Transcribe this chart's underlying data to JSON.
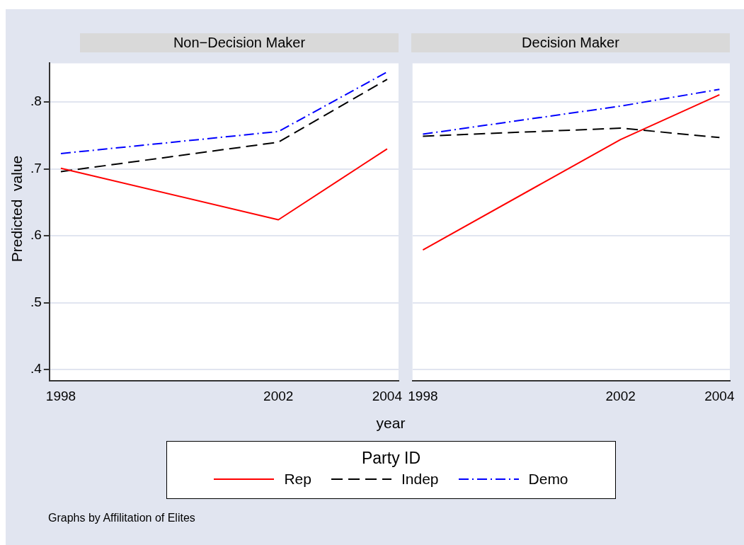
{
  "chart_data": [
    {
      "type": "line",
      "title": "Non−Decision Maker",
      "ylabel": "Predicted  value",
      "xlabel": "year",
      "legend_title": "Party ID",
      "legend": "bottom",
      "annotations": [
        "Graphs by Affilitation of Elites"
      ],
      "x": [
        1998,
        2002,
        2004
      ],
      "xlim": [
        1997.79,
        2004.21
      ],
      "xticks": [
        1998,
        2002,
        2004
      ],
      "ylim": [
        0.383,
        0.858
      ],
      "yticks": [
        {
          "value": 0.4,
          "label": ".4"
        },
        {
          "value": 0.5,
          "label": ".5"
        },
        {
          "value": 0.6,
          "label": ".6"
        },
        {
          "value": 0.7,
          "label": ".7"
        },
        {
          "value": 0.8,
          "label": ".8"
        }
      ],
      "grid": "y",
      "series": [
        {
          "name": "Rep",
          "color": "#ff0000",
          "line_style": "solid",
          "values": [
            0.701,
            0.624,
            0.73
          ]
        },
        {
          "name": "Indep",
          "color": "#000000",
          "line_style": "dashed",
          "values": [
            0.696,
            0.74,
            0.834
          ]
        },
        {
          "name": "Demo",
          "color": "#0000ff",
          "line_style": "dashdot",
          "values": [
            0.723,
            0.756,
            0.845
          ]
        }
      ]
    },
    {
      "type": "line",
      "title": "Decision Maker",
      "tick_labels": "x",
      "x": [
        1998,
        2002,
        2004
      ],
      "xlim": [
        1997.79,
        2004.21
      ],
      "xticks": [
        1998,
        2002,
        2004
      ],
      "ylim": [
        0.383,
        0.858
      ],
      "yticks": [
        0.4,
        0.5,
        0.6,
        0.7,
        0.8
      ],
      "grid": "y",
      "series": [
        {
          "color": "#ff0000",
          "line_style": "solid",
          "values": [
            0.579,
            0.744,
            0.811
          ]
        },
        {
          "color": "#000000",
          "line_style": "dashed",
          "values": [
            0.749,
            0.761,
            0.747
          ]
        },
        {
          "color": "#0000ff",
          "line_style": "dashdot",
          "values": [
            0.752,
            0.794,
            0.819
          ]
        }
      ]
    }
  ]
}
